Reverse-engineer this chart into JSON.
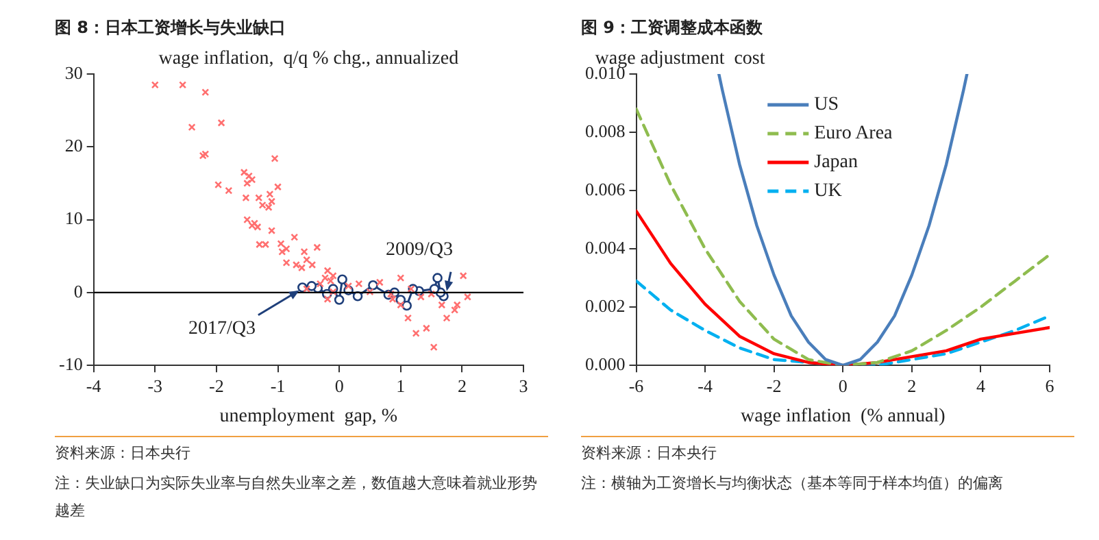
{
  "chart_data": [
    {
      "type": "scatter",
      "title": "图 8：日本工资增长与失业缺口",
      "xlabel": "unemployment  gap, %",
      "ylabel": "wage inflation,  q/q % chg., annualized",
      "xlim": [
        -4,
        3
      ],
      "ylim": [
        -10,
        30
      ],
      "xticks": [
        -4,
        -3,
        -2,
        -1,
        0,
        1,
        2,
        3
      ],
      "yticks": [
        -10,
        0,
        10,
        20,
        30
      ],
      "grid": false,
      "legend": false,
      "series": [
        {
          "type": "scatter",
          "marker": "cross",
          "color": "#ff6f6f",
          "x": [
            -3.0,
            -2.55,
            -2.18,
            -2.4,
            -1.92,
            -2.22,
            -2.18,
            -1.97,
            -1.8,
            -1.05,
            -1.55,
            -1.47,
            -1.42,
            -1.5,
            -1.52,
            -1.31,
            -1.25,
            -1.13,
            -1.0,
            -1.1,
            -1.15,
            -1.5,
            -1.38,
            -1.33,
            -1.42,
            -1.1,
            -1.2,
            -1.3,
            -0.95,
            -0.86,
            -0.93,
            -0.73,
            -0.57,
            -0.36,
            -0.53,
            -0.7,
            -0.86,
            -0.44,
            -0.61,
            -0.19,
            -0.23,
            -0.14,
            -0.31,
            -0.1,
            0.15,
            0.32,
            0.66,
            1.0,
            0.87,
            1.0,
            1.12,
            1.25,
            1.42,
            1.54,
            1.33,
            1.5,
            1.67,
            1.75,
            1.88,
            1.92,
            2.02,
            2.09,
            1.17,
            0.84,
            0.5,
            -0.19,
            -0.1,
            -0.53
          ],
          "values": [
            28.5,
            28.5,
            27.5,
            22.7,
            23.3,
            18.8,
            19.0,
            14.8,
            14.0,
            18.4,
            16.5,
            16.0,
            15.5,
            15.0,
            13.0,
            13.0,
            12.0,
            13.5,
            14.5,
            12.5,
            11.7,
            10.0,
            9.5,
            9.0,
            9.2,
            8.5,
            6.6,
            6.6,
            6.7,
            6.0,
            5.6,
            7.6,
            5.6,
            6.2,
            4.5,
            3.8,
            4.1,
            3.8,
            3.4,
            3.0,
            2.0,
            1.6,
            1.2,
            2.3,
            0.9,
            1.2,
            1.4,
            2.0,
            -0.9,
            -1.7,
            -3.5,
            -5.6,
            -4.9,
            -7.5,
            -0.6,
            -0.2,
            -1.7,
            -3.5,
            -2.4,
            -1.7,
            2.3,
            -0.6,
            0.5,
            -0.2,
            0.1,
            -0.9,
            0.1,
            0.5
          ]
        },
        {
          "type": "line",
          "marker": "circle",
          "color": "#1f3f7a",
          "x": [
            1.7,
            1.65,
            1.6,
            1.55,
            1.3,
            1.2,
            1.1,
            1.0,
            0.9,
            0.8,
            0.55,
            0.3,
            0.15,
            0.05,
            0.0,
            -0.1,
            -0.2,
            -0.35,
            -0.45,
            -0.6
          ],
          "values": [
            -0.5,
            0.0,
            2.0,
            0.5,
            0.2,
            0.5,
            -1.8,
            -1.0,
            0.0,
            -0.3,
            1.0,
            -0.5,
            0.3,
            1.8,
            -1.0,
            0.5,
            -0.2,
            0.6,
            0.9,
            0.7
          ]
        }
      ],
      "ref_lines": [
        {
          "axis": "y",
          "value": 0,
          "color": "#000000"
        }
      ],
      "annotations": [
        {
          "text": "2017/Q3",
          "x": -0.65,
          "y": 0.3
        },
        {
          "text": "2009/Q3",
          "x": 1.75,
          "y": 0.2
        },
        "资料来源：日本央行",
        "注：失业缺口为实际失业率与自然失业率之差，数值越大意味着就业形势越差"
      ]
    },
    {
      "type": "line",
      "title": "图 9：工资调整成本函数",
      "xlabel": "wage inflation  (% annual)",
      "ylabel": "wage adjustment  cost",
      "xlim": [
        -6,
        6
      ],
      "ylim": [
        0,
        0.01
      ],
      "xticks": [
        -6,
        -4,
        -2,
        0,
        2,
        4,
        6
      ],
      "yticks": [
        {
          "value": 0,
          "label": "0.000"
        },
        {
          "value": 0.002,
          "label": "0.002"
        },
        {
          "value": 0.004,
          "label": "0.004"
        },
        {
          "value": 0.006,
          "label": "0.006"
        },
        {
          "value": 0.008,
          "label": "0.008"
        },
        {
          "value": 0.01,
          "label": "0.010"
        }
      ],
      "grid": false,
      "legend": "top",
      "marker": "none",
      "series": [
        {
          "name": "US",
          "color": "#4a7ebb",
          "line_style": "solid",
          "x": [
            -3.6,
            -3.5,
            -3,
            -2.5,
            -2,
            -1.5,
            -1,
            -0.5,
            0,
            0.5,
            1,
            1.5,
            2,
            2.5,
            3,
            3.5,
            3.6
          ],
          "values": [
            0.01,
            0.00945,
            0.0069,
            0.0048,
            0.0031,
            0.0017,
            0.0008,
            0.0002,
            0,
            0.0002,
            0.0008,
            0.0017,
            0.0031,
            0.0048,
            0.0069,
            0.00945,
            0.01
          ]
        },
        {
          "name": "Euro Area",
          "color": "#8fbc4f",
          "line_style": "dashed",
          "x": [
            -6,
            -5,
            -4,
            -3,
            -2,
            -1,
            0,
            1,
            2,
            3,
            4,
            5,
            6
          ],
          "values": [
            0.0088,
            0.0062,
            0.004,
            0.0022,
            0.0009,
            0.0002,
            0,
            0.0001,
            0.0005,
            0.0012,
            0.002,
            0.0029,
            0.0038
          ]
        },
        {
          "name": "Japan",
          "color": "#ff0000",
          "line_style": "solid",
          "x": [
            -6,
            -5,
            -4,
            -3,
            -2,
            -1,
            0,
            1,
            2,
            3,
            4,
            5,
            6
          ],
          "values": [
            0.0053,
            0.0035,
            0.0021,
            0.001,
            0.0004,
            0.0001,
            0,
            0.0001,
            0.0003,
            0.0005,
            0.0009,
            0.0011,
            0.0013
          ]
        },
        {
          "name": "UK",
          "color": "#00b0f0",
          "line_style": "dashed",
          "x": [
            -6,
            -5,
            -4,
            -3,
            -2,
            -1,
            0,
            1,
            2,
            3,
            4,
            5,
            6
          ],
          "values": [
            0.0029,
            0.0019,
            0.0012,
            0.0006,
            0.0002,
            0.0001,
            0,
            0,
            0.0002,
            0.0004,
            0.0008,
            0.0012,
            0.0017
          ]
        }
      ],
      "annotations": [
        "资料来源：日本央行",
        "注：横轴为工资增长与均衡状态（基本等同于样本均值）的偏离"
      ]
    }
  ]
}
